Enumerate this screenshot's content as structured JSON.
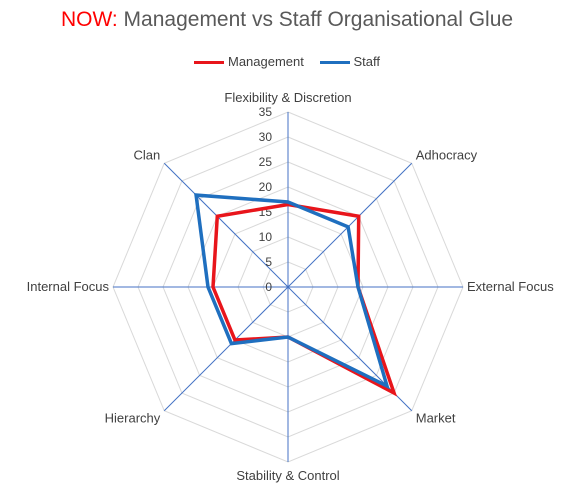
{
  "chart_data": {
    "type": "radar",
    "title_highlight": "NOW:",
    "title_rest": " Management vs Staff Organisational Glue",
    "axes": [
      "Flexibility & Discretion",
      "Adhocracy",
      "External Focus",
      "Market",
      "Stability & Control",
      "Hierarchy",
      "Internal Focus",
      "Clan"
    ],
    "rlim": [
      0,
      35
    ],
    "ticks": [
      0,
      5,
      10,
      15,
      20,
      25,
      30,
      35
    ],
    "grid": true,
    "legend_position": "top",
    "series": [
      {
        "name": "Management",
        "color": "#e8151b",
        "values": [
          16.5,
          20,
          14,
          30,
          10,
          15,
          15,
          20
        ]
      },
      {
        "name": "Staff",
        "color": "#1f6fbf",
        "values": [
          17,
          17,
          14,
          28,
          10,
          16,
          16,
          26
        ]
      }
    ]
  },
  "colors": {
    "axis": "#4472c4",
    "grid": "#d9d9d9"
  }
}
